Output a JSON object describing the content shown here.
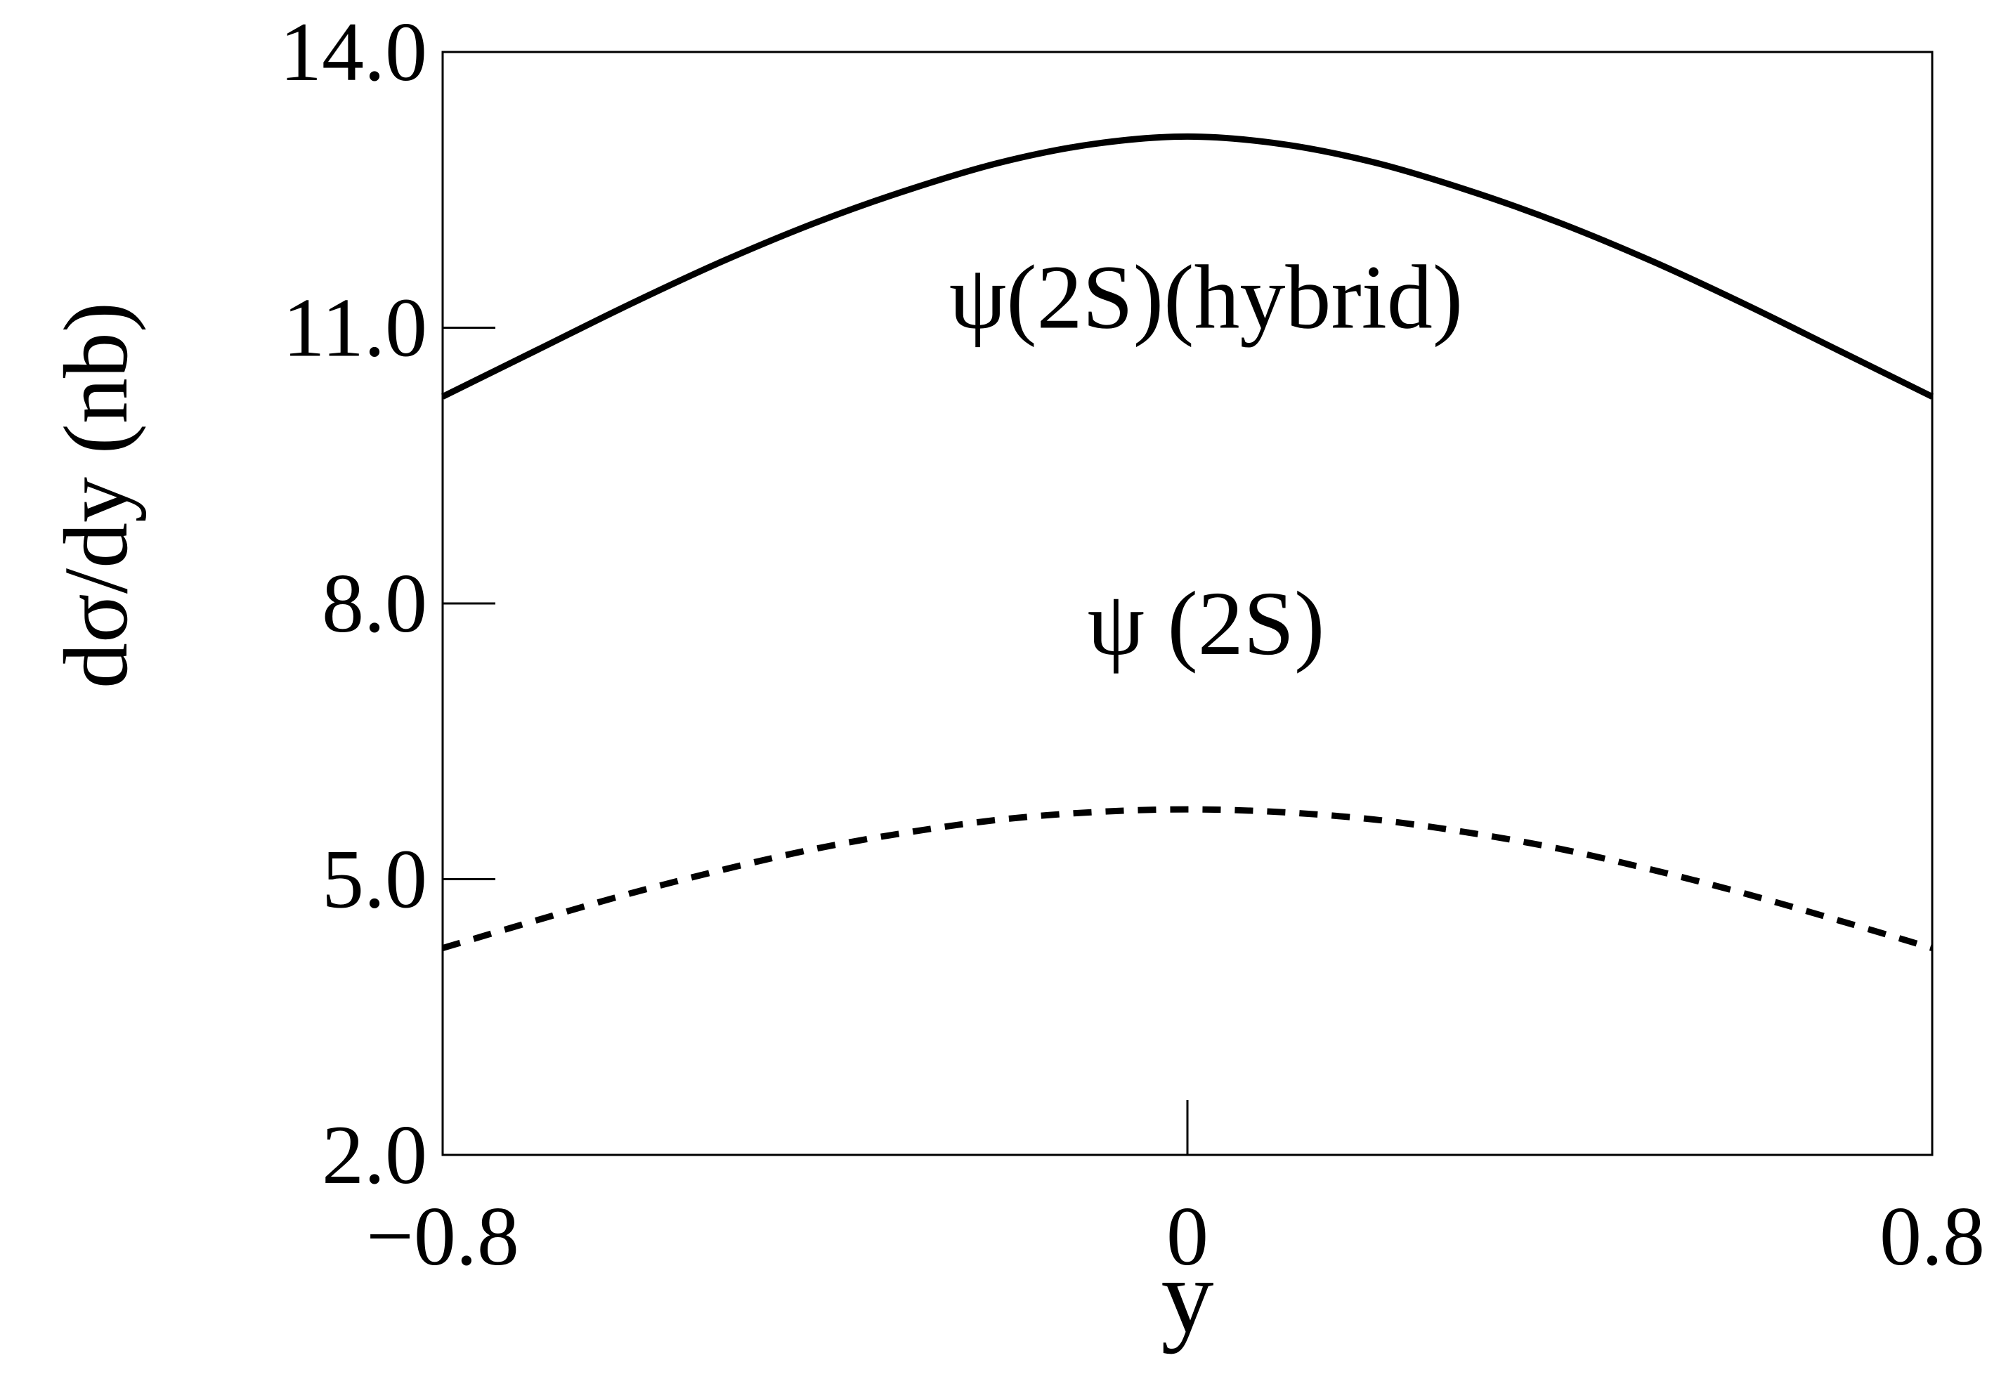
{
  "chart_data": {
    "type": "line",
    "xlabel": "y",
    "ylabel": "dσ/dy (nb)",
    "xlim": [
      -0.8,
      0.8
    ],
    "ylim": [
      2.0,
      14.0
    ],
    "xticks": [
      {
        "value": -0.8,
        "label": "−0.8"
      },
      {
        "value": 0,
        "label": "0"
      },
      {
        "value": 0.8,
        "label": "0.8"
      }
    ],
    "yticks": [
      {
        "value": 2.0,
        "label": "2.0"
      },
      {
        "value": 5.0,
        "label": "5.0"
      },
      {
        "value": 8.0,
        "label": "8.0"
      },
      {
        "value": 11.0,
        "label": "11.0"
      },
      {
        "value": 14.0,
        "label": "14.0"
      }
    ],
    "grid": false,
    "series": [
      {
        "name": "ψ(2S)(hybrid)",
        "style": "solid",
        "color": "#000000",
        "x": [
          -0.8,
          -0.7,
          -0.6,
          -0.5,
          -0.4,
          -0.3,
          -0.2,
          -0.1,
          0.0,
          0.1,
          0.2,
          0.3,
          0.4,
          0.5,
          0.6,
          0.7,
          0.8
        ],
        "y": [
          10.25,
          10.75,
          11.25,
          11.72,
          12.14,
          12.5,
          12.8,
          13.0,
          13.08,
          13.0,
          12.8,
          12.5,
          12.14,
          11.72,
          11.25,
          10.75,
          10.25
        ]
      },
      {
        "name": "ψ (2S)",
        "style": "dashed",
        "color": "#000000",
        "x": [
          -0.8,
          -0.7,
          -0.6,
          -0.5,
          -0.4,
          -0.3,
          -0.2,
          -0.1,
          0.0,
          0.1,
          0.2,
          0.3,
          0.4,
          0.5,
          0.6,
          0.7,
          0.8
        ],
        "y": [
          4.25,
          4.55,
          4.84,
          5.1,
          5.33,
          5.51,
          5.65,
          5.73,
          5.76,
          5.73,
          5.65,
          5.51,
          5.33,
          5.1,
          4.84,
          4.55,
          4.25
        ]
      }
    ],
    "annotations": [
      {
        "text": "ψ(2S)(hybrid)",
        "x": 0.02,
        "y": 11.0
      },
      {
        "text": "ψ (2S)",
        "x": 0.02,
        "y": 7.45
      }
    ]
  }
}
